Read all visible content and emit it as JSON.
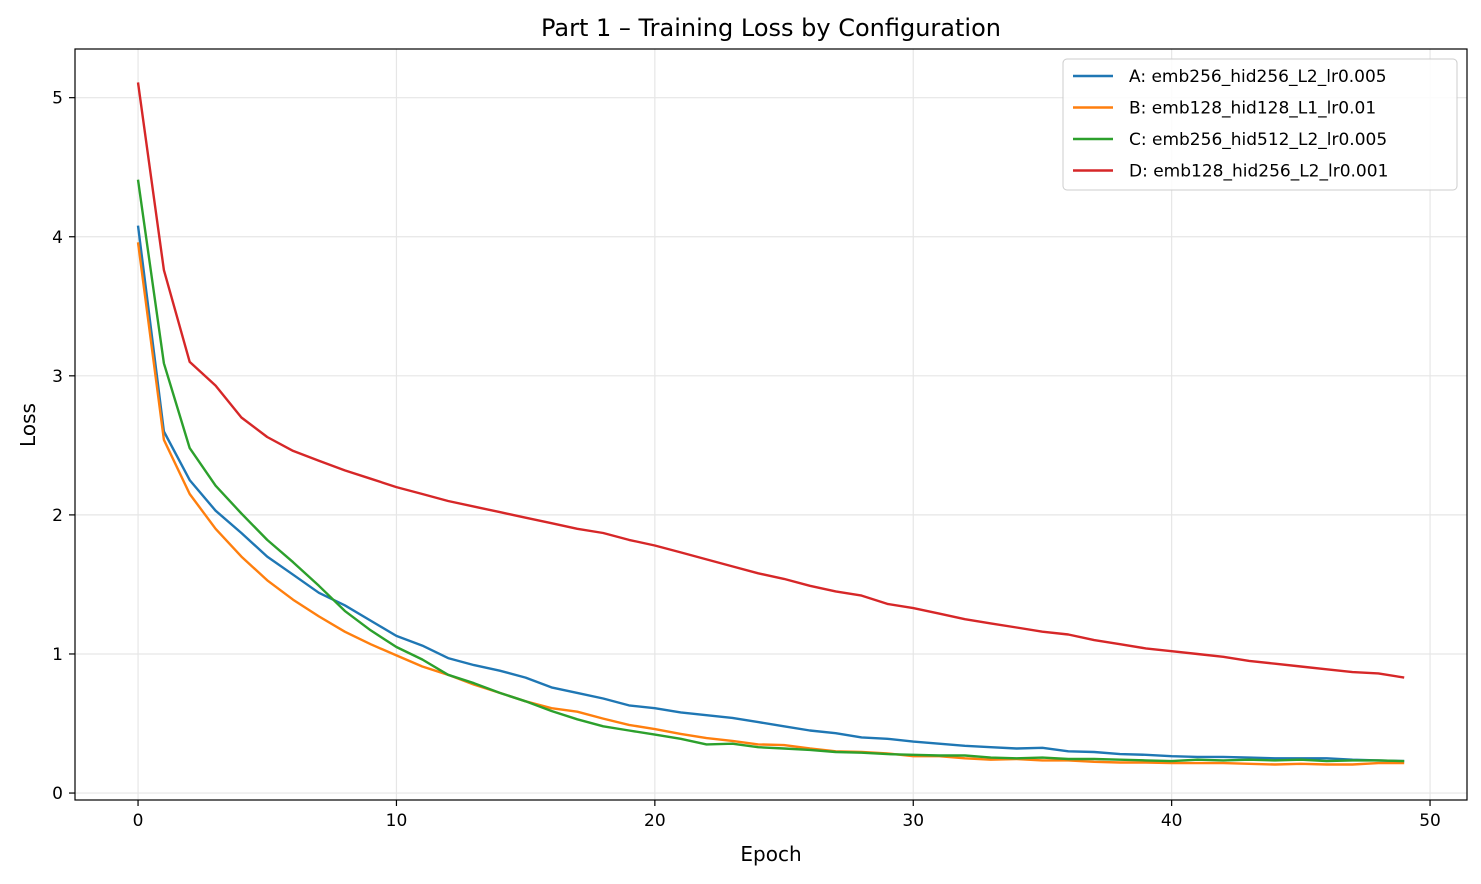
{
  "chart_data": {
    "type": "line",
    "title": "Part 1 – Training Loss by Configuration",
    "xlabel": "Epoch",
    "ylabel": "Loss",
    "xlim": [
      -2.44,
      51.43
    ],
    "ylim": [
      -0.05,
      5.35
    ],
    "xticks": [
      0,
      10,
      20,
      30,
      40,
      50
    ],
    "yticks": [
      0,
      1,
      2,
      3,
      4,
      5
    ],
    "grid": true,
    "legend_position": "top-right",
    "x": [
      0,
      1,
      2,
      3,
      4,
      5,
      6,
      7,
      8,
      9,
      10,
      11,
      12,
      13,
      14,
      15,
      16,
      17,
      18,
      19,
      20,
      21,
      22,
      23,
      24,
      25,
      26,
      27,
      28,
      29,
      30,
      31,
      32,
      33,
      34,
      35,
      36,
      37,
      38,
      39,
      40,
      41,
      42,
      43,
      44,
      45,
      46,
      47,
      48,
      49
    ],
    "series": [
      {
        "name": "A: emb256_hid256_L2_lr0.005",
        "color": "#1f77b4",
        "values": [
          4.08,
          2.6,
          2.25,
          2.03,
          1.87,
          1.7,
          1.57,
          1.44,
          1.35,
          1.24,
          1.13,
          1.06,
          0.97,
          0.92,
          0.88,
          0.83,
          0.76,
          0.72,
          0.68,
          0.63,
          0.61,
          0.58,
          0.56,
          0.54,
          0.51,
          0.48,
          0.45,
          0.43,
          0.4,
          0.39,
          0.37,
          0.355,
          0.34,
          0.33,
          0.32,
          0.325,
          0.3,
          0.295,
          0.28,
          0.275,
          0.265,
          0.26,
          0.26,
          0.255,
          0.25,
          0.25,
          0.25,
          0.24,
          0.235,
          0.23
        ]
      },
      {
        "name": "B: emb128_hid128_L1_lr0.01",
        "color": "#ff7f0e",
        "values": [
          3.96,
          2.54,
          2.15,
          1.9,
          1.7,
          1.53,
          1.39,
          1.27,
          1.16,
          1.07,
          0.99,
          0.91,
          0.85,
          0.78,
          0.72,
          0.66,
          0.61,
          0.585,
          0.535,
          0.49,
          0.46,
          0.425,
          0.395,
          0.375,
          0.35,
          0.345,
          0.32,
          0.3,
          0.295,
          0.285,
          0.265,
          0.265,
          0.25,
          0.24,
          0.245,
          0.235,
          0.235,
          0.225,
          0.22,
          0.22,
          0.215,
          0.215,
          0.215,
          0.21,
          0.205,
          0.21,
          0.205,
          0.205,
          0.215,
          0.215
        ]
      },
      {
        "name": "C: emb256_hid512_L2_lr0.005",
        "color": "#2ca02c",
        "values": [
          4.41,
          3.09,
          2.48,
          2.21,
          2.01,
          1.82,
          1.66,
          1.49,
          1.31,
          1.17,
          1.05,
          0.96,
          0.85,
          0.79,
          0.72,
          0.66,
          0.59,
          0.53,
          0.48,
          0.45,
          0.42,
          0.39,
          0.35,
          0.355,
          0.33,
          0.32,
          0.31,
          0.295,
          0.29,
          0.28,
          0.275,
          0.27,
          0.27,
          0.255,
          0.25,
          0.255,
          0.245,
          0.245,
          0.24,
          0.235,
          0.23,
          0.24,
          0.235,
          0.24,
          0.235,
          0.24,
          0.23,
          0.235,
          0.235,
          0.23
        ]
      },
      {
        "name": "D: emb128_hid256_L2_lr0.001",
        "color": "#d62728",
        "values": [
          5.11,
          3.76,
          3.1,
          2.93,
          2.7,
          2.56,
          2.46,
          2.39,
          2.32,
          2.26,
          2.2,
          2.15,
          2.1,
          2.06,
          2.02,
          1.98,
          1.94,
          1.9,
          1.87,
          1.82,
          1.78,
          1.73,
          1.68,
          1.63,
          1.58,
          1.54,
          1.49,
          1.45,
          1.42,
          1.36,
          1.33,
          1.29,
          1.25,
          1.22,
          1.19,
          1.16,
          1.14,
          1.1,
          1.07,
          1.04,
          1.02,
          1.0,
          0.98,
          0.95,
          0.93,
          0.91,
          0.89,
          0.87,
          0.86,
          0.83
        ]
      }
    ]
  }
}
